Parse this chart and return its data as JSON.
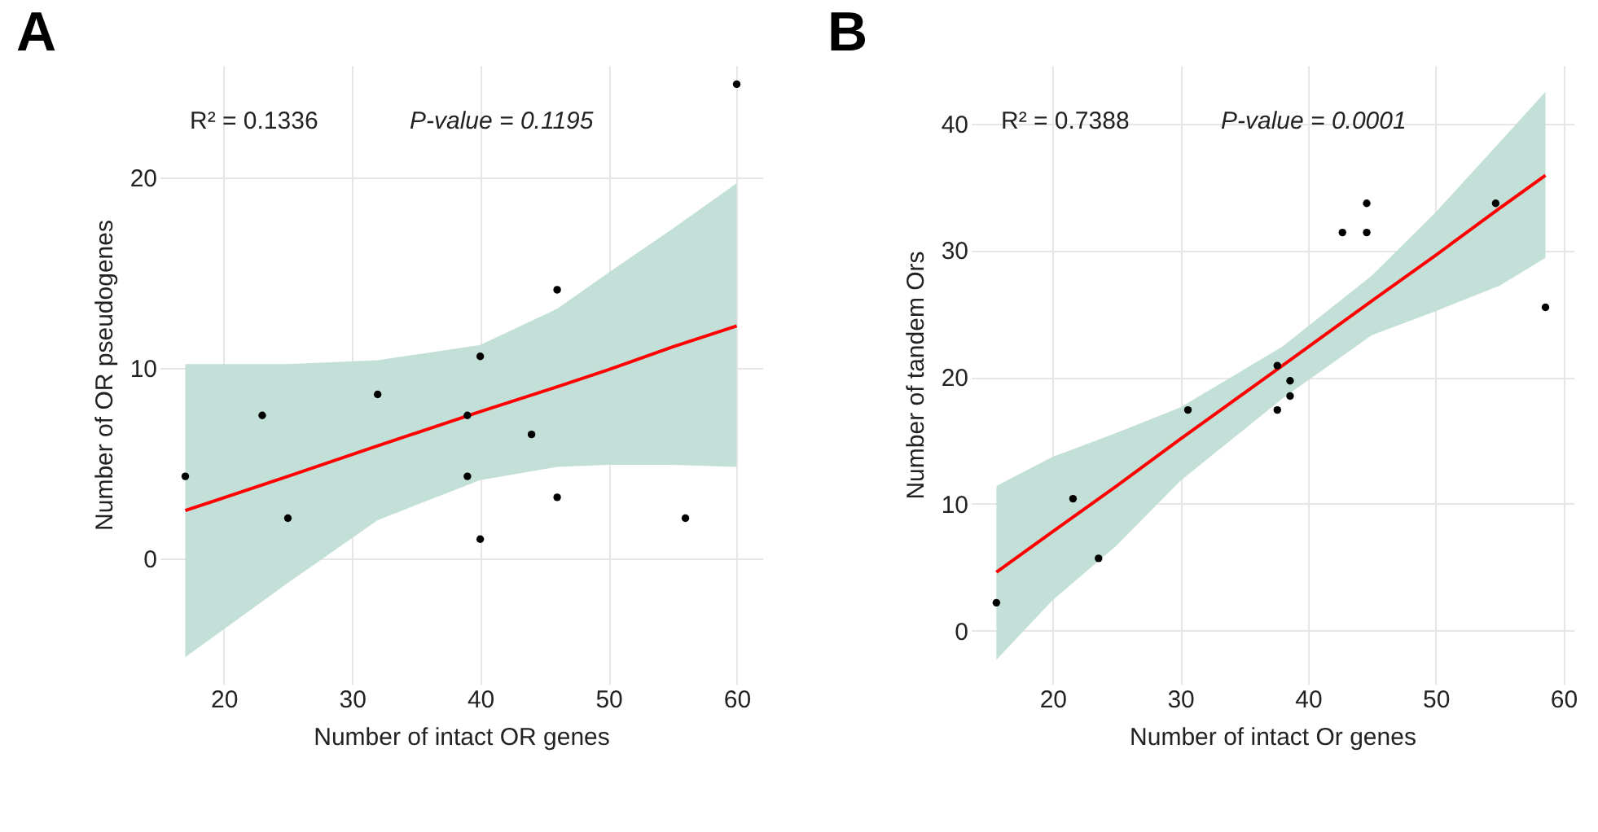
{
  "chart_data": [
    {
      "type": "scatter",
      "title": "A",
      "xlabel": "Number of intact OR genes",
      "ylabel": "Number of OR pseudogenes",
      "annotations": [
        "R² = 0.1336",
        "P-value = 0.1195"
      ],
      "xlim": [
        15,
        62
      ],
      "ylim": [
        -6.6,
        25.9
      ],
      "xticks": [
        20,
        30,
        40,
        50,
        60
      ],
      "yticks": [
        0,
        10,
        20
      ],
      "grid": true,
      "series": [
        {
          "marker": "circle",
          "color": "#000000",
          "x": [
            17,
            23,
            25,
            32,
            39,
            39,
            40,
            40,
            44,
            46,
            46,
            56,
            60
          ],
          "values": [
            4.3,
            7.5,
            2.1,
            8.6,
            7.5,
            4.3,
            10.6,
            1.0,
            6.5,
            14.1,
            3.2,
            2.1,
            24.9
          ]
        },
        {
          "type": "line",
          "color": "#ff0000",
          "x": [
            17,
            25,
            32,
            40,
            46,
            50,
            55,
            60
          ],
          "values": [
            2.5,
            4.3,
            5.9,
            7.7,
            9.0,
            9.9,
            11.1,
            12.2
          ],
          "lower": [
            -5.2,
            -1.3,
            2.0,
            4.1,
            4.8,
            4.9,
            4.9,
            4.8
          ],
          "upper": [
            10.2,
            10.2,
            10.4,
            11.2,
            13.1,
            15.0,
            17.3,
            19.7
          ]
        }
      ]
    },
    {
      "type": "scatter",
      "title": "B",
      "xlabel": "Number of intact Or genes",
      "ylabel": "Number of tandem Ors",
      "annotations": [
        "R² = 0.7388",
        "P-value = 0.0001"
      ],
      "xlim": [
        13.6,
        60.8
      ],
      "ylim": [
        -4.2,
        44.6
      ],
      "xticks": [
        20,
        30,
        40,
        50,
        60
      ],
      "yticks": [
        0,
        10,
        20,
        30,
        40
      ],
      "grid": true,
      "series": [
        {
          "marker": "circle",
          "color": "#000000",
          "x": [
            15.6,
            21.6,
            23.6,
            30.6,
            37.6,
            37.6,
            38.6,
            38.6,
            42.7,
            44.6,
            44.6,
            54.7,
            58.6
          ],
          "values": [
            2.2,
            10.4,
            5.7,
            17.4,
            20.9,
            17.4,
            19.7,
            18.5,
            31.4,
            33.7,
            31.4,
            33.7,
            25.5
          ]
        },
        {
          "type": "line",
          "color": "#ff0000",
          "x": [
            15.6,
            20,
            25,
            30,
            38,
            45,
            50,
            55,
            58.6
          ],
          "values": [
            4.6,
            7.8,
            11.4,
            15.1,
            20.9,
            26.0,
            29.6,
            33.3,
            35.9
          ],
          "lower": [
            -2.3,
            2.4,
            6.7,
            11.8,
            18.3,
            23.3,
            25.2,
            27.2,
            29.4
          ],
          "upper": [
            11.4,
            13.7,
            15.6,
            17.6,
            22.4,
            28.0,
            33.0,
            38.5,
            42.5
          ]
        }
      ]
    }
  ]
}
